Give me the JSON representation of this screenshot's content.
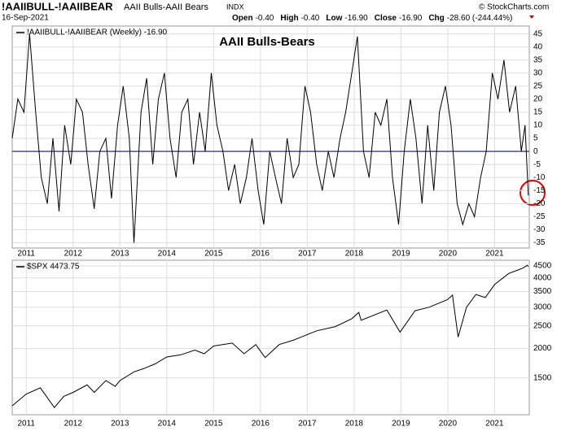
{
  "header": {
    "symbol": "!AAIIBULL-!AAIIBEAR",
    "name": "AAII Bulls-AAII Bears",
    "exchange": "INDX",
    "date": "16-Sep-2021",
    "quote": [
      [
        "Open",
        "-0.40"
      ],
      [
        "High",
        "-0.40"
      ],
      [
        "Low",
        "-16.90"
      ],
      [
        "Close",
        "-16.90"
      ],
      [
        "Chg",
        "-28.60 (-244.44%)"
      ]
    ],
    "brand": "© StockCharts.com"
  },
  "chart_data": [
    {
      "type": "line",
      "title": "AAII Bulls-Bears",
      "grid": true,
      "log_scale": false,
      "hline": {
        "value": 0,
        "color": "#000080"
      },
      "x": [
        2010.7,
        2010.82,
        2010.95,
        2011.07,
        2011.2,
        2011.32,
        2011.45,
        2011.57,
        2011.7,
        2011.82,
        2011.95,
        2012.07,
        2012.2,
        2012.32,
        2012.45,
        2012.57,
        2012.7,
        2012.82,
        2012.95,
        2013.07,
        2013.2,
        2013.3,
        2013.45,
        2013.57,
        2013.7,
        2013.82,
        2013.95,
        2014.07,
        2014.2,
        2014.32,
        2014.45,
        2014.57,
        2014.7,
        2014.82,
        2014.95,
        2015.07,
        2015.2,
        2015.32,
        2015.45,
        2015.57,
        2015.7,
        2015.82,
        2015.95,
        2016.07,
        2016.2,
        2016.32,
        2016.45,
        2016.57,
        2016.7,
        2016.82,
        2016.95,
        2017.07,
        2017.2,
        2017.32,
        2017.45,
        2017.57,
        2017.7,
        2017.82,
        2017.95,
        2018.07,
        2018.2,
        2018.32,
        2018.45,
        2018.57,
        2018.7,
        2018.82,
        2018.95,
        2019.07,
        2019.2,
        2019.32,
        2019.45,
        2019.57,
        2019.7,
        2019.82,
        2019.95,
        2020.07,
        2020.2,
        2020.32,
        2020.45,
        2020.57,
        2020.7,
        2020.82,
        2020.95,
        2021.07,
        2021.2,
        2021.32,
        2021.45,
        2021.57,
        2021.65,
        2021.72
      ],
      "series": [
        {
          "name": "!AAIIBULL-!AAIIBEAR (Weekly) -16.90",
          "color": "#000000",
          "values": [
            5,
            20,
            15,
            45,
            15,
            -10,
            -20,
            5,
            -23,
            10,
            -5,
            20,
            15,
            -5,
            -22,
            0,
            5,
            -18,
            10,
            25,
            5,
            -35,
            15,
            28,
            -5,
            20,
            30,
            5,
            -10,
            15,
            20,
            -5,
            15,
            0,
            30,
            10,
            0,
            -15,
            -5,
            -20,
            -10,
            5,
            -15,
            -28,
            0,
            -10,
            -20,
            5,
            -10,
            -5,
            25,
            15,
            -5,
            -15,
            0,
            -10,
            5,
            15,
            30,
            44,
            0,
            -10,
            15,
            10,
            20,
            -10,
            -28,
            0,
            20,
            5,
            -20,
            10,
            -15,
            15,
            25,
            10,
            -20,
            -28,
            -20,
            -25,
            -10,
            0,
            30,
            20,
            35,
            15,
            25,
            0,
            10,
            -16.9
          ]
        }
      ],
      "xlim": [
        2010.7,
        2021.74
      ],
      "xticks": [
        2011,
        2012,
        2013,
        2014,
        2015,
        2016,
        2017,
        2018,
        2019,
        2020,
        2021
      ],
      "ylim": [
        -37,
        48
      ],
      "yticks": [
        -35,
        -30,
        -25,
        -20,
        -15,
        -10,
        -5,
        0,
        5,
        10,
        15,
        20,
        25,
        30,
        35,
        40,
        45
      ]
    },
    {
      "type": "line",
      "grid": true,
      "log_scale": true,
      "x": [
        2010.7,
        2011.0,
        2011.3,
        2011.6,
        2011.8,
        2012.0,
        2012.3,
        2012.45,
        2012.7,
        2012.9,
        2013.0,
        2013.3,
        2013.5,
        2013.75,
        2014.0,
        2014.3,
        2014.6,
        2014.8,
        2015.0,
        2015.4,
        2015.65,
        2015.9,
        2016.1,
        2016.4,
        2016.7,
        2016.9,
        2017.2,
        2017.6,
        2017.95,
        2018.1,
        2018.15,
        2018.7,
        2018.98,
        2019.3,
        2019.6,
        2019.99,
        2020.1,
        2020.22,
        2020.4,
        2020.6,
        2020.8,
        2021.0,
        2021.3,
        2021.6,
        2021.7,
        2021.72
      ],
      "series": [
        {
          "name": "$SPX 4473.75",
          "color": "#000000",
          "values": [
            1140,
            1280,
            1360,
            1120,
            1250,
            1300,
            1400,
            1300,
            1460,
            1380,
            1460,
            1590,
            1640,
            1720,
            1840,
            1880,
            1970,
            1900,
            2050,
            2110,
            1900,
            2080,
            1830,
            2080,
            2170,
            2250,
            2380,
            2480,
            2680,
            2850,
            2640,
            2920,
            2350,
            2900,
            3000,
            3230,
            3380,
            2240,
            3000,
            3400,
            3300,
            3750,
            4180,
            4400,
            4530,
            4473.75
          ]
        }
      ],
      "xlim": [
        2010.7,
        2021.74
      ],
      "xticks": [
        2011,
        2012,
        2013,
        2014,
        2015,
        2016,
        2017,
        2018,
        2019,
        2020,
        2021
      ],
      "ylim": [
        1044,
        4760
      ],
      "yticks": [
        1500,
        2000,
        2500,
        3000,
        3500,
        4000,
        4500
      ]
    }
  ]
}
